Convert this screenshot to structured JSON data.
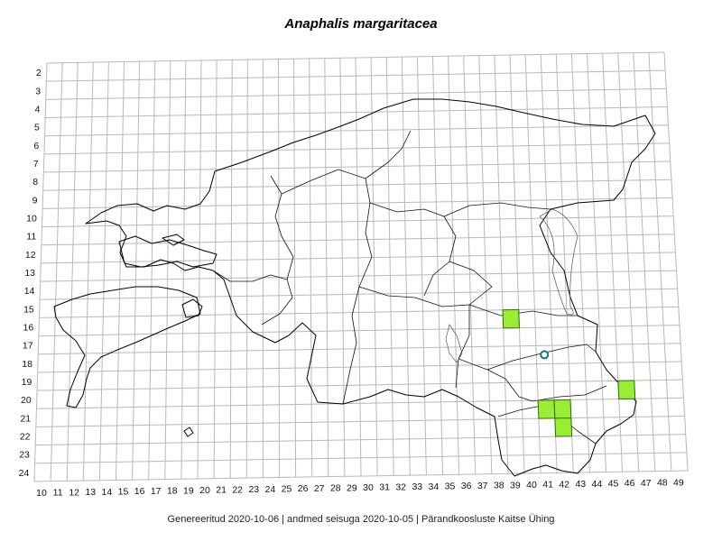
{
  "title": "Anaphalis margaritacea",
  "footer": "Genereeritud 2020-10-06  |  andmed seisuga 2020-10-05  |  Pärandkoosluste Kaitse Ühing",
  "grid": {
    "x_labels": [
      "10",
      "11",
      "12",
      "13",
      "14",
      "15",
      "16",
      "17",
      "18",
      "19",
      "20",
      "21",
      "22",
      "23",
      "24",
      "25",
      "26",
      "27",
      "28",
      "29",
      "30",
      "31",
      "32",
      "33",
      "34",
      "35",
      "36",
      "37",
      "38",
      "39",
      "40",
      "41",
      "42",
      "43",
      "44",
      "45",
      "46",
      "47",
      "48",
      "49"
    ],
    "y_labels": [
      "2",
      "3",
      "4",
      "5",
      "6",
      "7",
      "8",
      "9",
      "10",
      "11",
      "12",
      "13",
      "14",
      "15",
      "16",
      "17",
      "18",
      "19",
      "20",
      "21",
      "22",
      "23",
      "24"
    ]
  },
  "colors": {
    "occupied_fill": "#99ee33",
    "occupied_stroke": "#3a6b10",
    "record_circle": "#1f6f8b",
    "grid": "#b8b8b8"
  },
  "occupied_cells": [
    {
      "col": 39,
      "row": 16
    },
    {
      "col": 46,
      "row": 20
    },
    {
      "col": 41,
      "row": 21
    },
    {
      "col": 42,
      "row": 21
    },
    {
      "col": 42,
      "row": 22
    }
  ],
  "record_points": [
    {
      "col": 41,
      "row": 18
    }
  ]
}
